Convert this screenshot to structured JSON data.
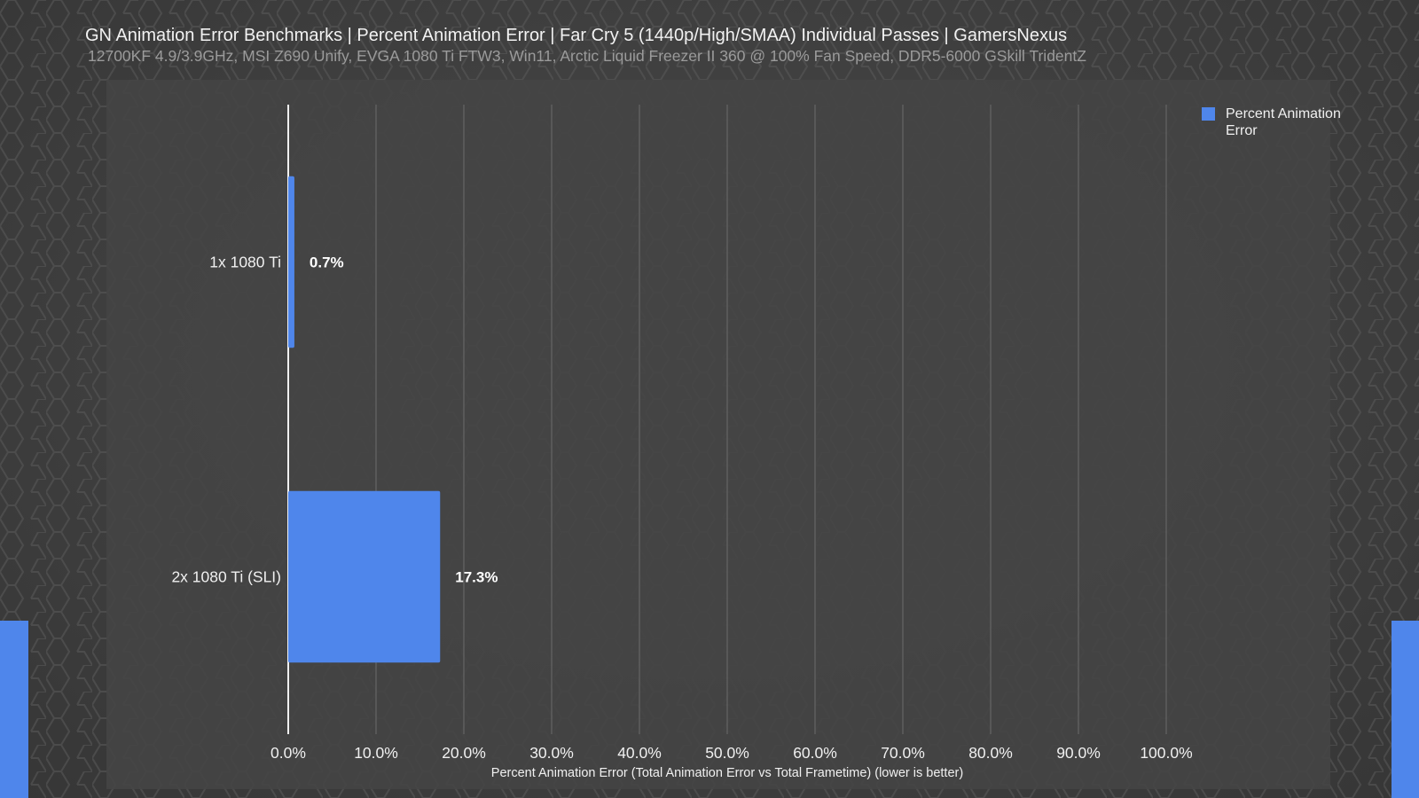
{
  "title": "GN Animation Error Benchmarks | Percent Animation Error | Far Cry 5 (1440p/High/SMAA) Individual Passes | GamersNexus",
  "subtitle": "12700KF 4.9/3.9GHz, MSI Z690 Unify, EVGA 1080 Ti FTW3, Win11, Arctic Liquid Freezer II 360 @ 100% Fan Speed, DDR5-6000 GSkill TridentZ",
  "legend": {
    "label": "Percent Animation Error",
    "position": "top-right"
  },
  "colors": {
    "bar": "#4f86eb",
    "text": "#f0f0f0",
    "grid": "#5e5e5e",
    "axis": "#f0f0f0",
    "subtitle": "#9b9b9b"
  },
  "chart_data": {
    "type": "bar",
    "orientation": "horizontal",
    "title": "GN Animation Error Benchmarks | Percent Animation Error | Far Cry 5 (1440p/High/SMAA) Individual Passes | GamersNexus",
    "subtitle": "12700KF 4.9/3.9GHz, MSI Z690 Unify, EVGA 1080 Ti FTW3, Win11, Arctic Liquid Freezer II 360 @ 100% Fan Speed, DDR5-6000 GSkill TridentZ",
    "categories": [
      "1x 1080 Ti",
      "2x 1080 Ti (SLI)"
    ],
    "series": [
      {
        "name": "Percent Animation Error",
        "values": [
          0.7,
          17.3
        ]
      }
    ],
    "value_labels": [
      "0.7%",
      "17.3%"
    ],
    "xlabel": "Percent Animation Error (Total Animation Error vs Total Frametime) (lower is better)",
    "ylabel": "",
    "xlim": [
      0,
      100
    ],
    "xticks": [
      0,
      10,
      20,
      30,
      40,
      50,
      60,
      70,
      80,
      90,
      100
    ],
    "xtick_labels": [
      "0.0%",
      "10.0%",
      "20.0%",
      "30.0%",
      "40.0%",
      "50.0%",
      "60.0%",
      "70.0%",
      "80.0%",
      "90.0%",
      "100.0%"
    ],
    "grid": true,
    "legend_position": "top-right"
  }
}
